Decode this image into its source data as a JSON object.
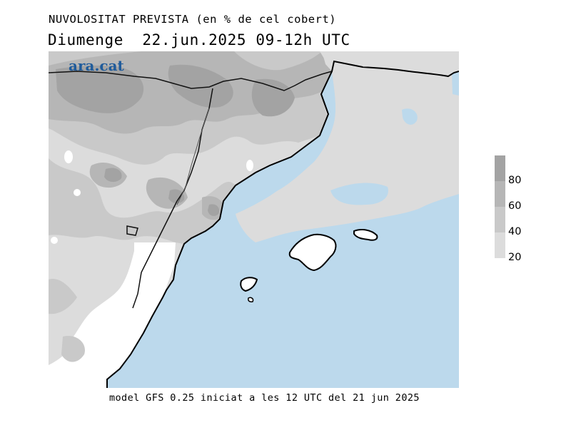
{
  "header": {
    "title": "NUVOLOSITAT PREVISTA (en % de cel cobert)",
    "subtitle": "Diumenge  22.jun.2025 09-12h UTC"
  },
  "map": {
    "logo_text": "ara.cat",
    "sea_color": "#bcd9ec",
    "land_clear_color": "#ffffff",
    "coast_color": "#000000",
    "border_color": "#222222"
  },
  "legend": {
    "labels": [
      "80",
      "60",
      "40",
      "20"
    ],
    "bands": [
      {
        "from": 80,
        "color": "#a3a3a3"
      },
      {
        "from": 60,
        "color": "#b6b6b6"
      },
      {
        "from": 40,
        "color": "#c9c9c9"
      },
      {
        "from": 20,
        "color": "#dcdcdc"
      }
    ]
  },
  "footer": {
    "text": "model GFS 0.25 iniciat a les 12 UTC del 21 jun 2025"
  }
}
